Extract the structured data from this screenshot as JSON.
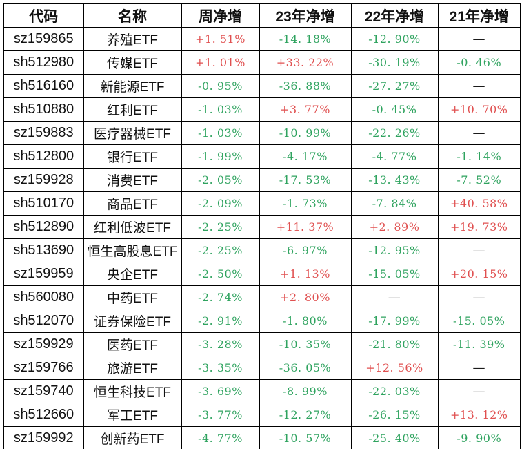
{
  "colors": {
    "positive": "#e05050",
    "negative": "#2fa35f",
    "neutral": "#1a1a1a",
    "border": "#000000"
  },
  "table": {
    "columns": [
      "代码",
      "名称",
      "周净增",
      "23年净增",
      "22年净增",
      "21年净增"
    ],
    "rows": [
      [
        "sz159865",
        "养殖ETF",
        "+1. 51%",
        "-14. 18%",
        "-12. 90%",
        "—"
      ],
      [
        "sh512980",
        "传媒ETF",
        "+1. 01%",
        "+33. 22%",
        "-30. 19%",
        "-0. 46%"
      ],
      [
        "sh516160",
        "新能源ETF",
        "-0. 95%",
        "-36. 88%",
        "-27. 27%",
        "—"
      ],
      [
        "sh510880",
        "红利ETF",
        "-1. 03%",
        "+3. 77%",
        "-0. 45%",
        "+10. 70%"
      ],
      [
        "sz159883",
        "医疗器械ETF",
        "-1. 03%",
        "-10. 99%",
        "-22. 26%",
        "—"
      ],
      [
        "sh512800",
        "银行ETF",
        "-1. 99%",
        "-4. 17%",
        "-4. 77%",
        "-1. 14%"
      ],
      [
        "sz159928",
        "消费ETF",
        "-2. 05%",
        "-17. 53%",
        "-13. 43%",
        "-7. 52%"
      ],
      [
        "sh510170",
        "商品ETF",
        "-2. 09%",
        "-1. 73%",
        "-7. 84%",
        "+40. 58%"
      ],
      [
        "sh512890",
        "红利低波ETF",
        "-2. 25%",
        "+11. 37%",
        "+2. 89%",
        "+19. 73%"
      ],
      [
        "sh513690",
        "恒生高股息ETF",
        "-2. 25%",
        "-6. 97%",
        "-12. 95%",
        "—"
      ],
      [
        "sz159959",
        "央企ETF",
        "-2. 50%",
        "+1. 13%",
        "-15. 05%",
        "+20. 15%"
      ],
      [
        "sh560080",
        "中药ETF",
        "-2. 74%",
        "+2. 80%",
        "—",
        "—"
      ],
      [
        "sh512070",
        "证券保险ETF",
        "-2. 91%",
        "-1. 80%",
        "-17. 99%",
        "-15. 05%"
      ],
      [
        "sz159929",
        "医药ETF",
        "-3. 28%",
        "-10. 35%",
        "-21. 80%",
        "-11. 39%"
      ],
      [
        "sz159766",
        "旅游ETF",
        "-3. 35%",
        "-36. 05%",
        "+12. 56%",
        "—"
      ],
      [
        "sz159740",
        "恒生科技ETF",
        "-3. 69%",
        "-8. 99%",
        "-22. 03%",
        "—"
      ],
      [
        "sh512660",
        "军工ETF",
        "-3. 77%",
        "-12. 27%",
        "-26. 15%",
        "+13. 12%"
      ],
      [
        "sz159992",
        "创新药ETF",
        "-4. 77%",
        "-10. 57%",
        "-25. 40%",
        "-9. 90%"
      ]
    ]
  }
}
